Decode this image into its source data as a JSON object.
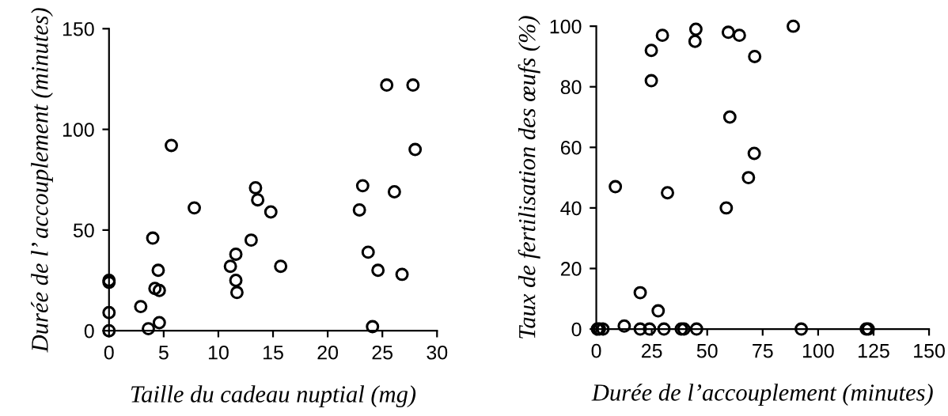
{
  "chart_data": [
    {
      "type": "scatter",
      "xlabel": "Taille du cadeau nuptial (mg)",
      "ylabel": "Durée de l’ accouplement (minutes)",
      "xlim": [
        0,
        30
      ],
      "ylim": [
        0,
        150
      ],
      "xticks": [
        0,
        5,
        10,
        15,
        20,
        25,
        30
      ],
      "yticks": [
        0,
        50,
        100,
        150
      ],
      "grid": false,
      "legend": false,
      "marker": "circle",
      "series": [
        {
          "color": "#000000",
          "x": [
            0,
            0,
            0,
            0,
            2.9,
            3.6,
            4.0,
            4.2,
            4.5,
            4.6,
            4.6,
            5.7,
            7.8,
            11.1,
            11.6,
            11.6,
            11.7,
            13.0,
            13.4,
            13.6,
            14.8,
            15.7,
            22.9,
            23.2,
            23.7,
            24.1,
            24.6,
            25.4,
            26.1,
            26.8,
            27.8,
            28.0
          ],
          "values": [
            25,
            24,
            9,
            0,
            12,
            1,
            46,
            21,
            30,
            20,
            4,
            92,
            61,
            32,
            38,
            25,
            19,
            45,
            71,
            65,
            59,
            32,
            60,
            72,
            39,
            2,
            30,
            122,
            69,
            28,
            122,
            90
          ]
        }
      ]
    },
    {
      "type": "scatter",
      "xlabel": "Durée de l’accouplement (minutes)",
      "ylabel": "Taux de fertilisation des œufs (%)",
      "xlim": [
        0,
        150
      ],
      "ylim": [
        0,
        100
      ],
      "xticks": [
        0,
        25,
        50,
        75,
        100,
        125,
        150
      ],
      "yticks": [
        0,
        20,
        40,
        60,
        80,
        100
      ],
      "grid": false,
      "legend": false,
      "marker": "circle",
      "series": [
        {
          "color": "#000000",
          "x": [
            0.5,
            1.4,
            3,
            8.6,
            12.6,
            19.8,
            19.8,
            24,
            24.8,
            24.8,
            27.9,
            29.8,
            30.5,
            32.1,
            38.3,
            39.5,
            44.5,
            44.9,
            45.2,
            58.6,
            59.5,
            60.2,
            64.5,
            68.6,
            71.2,
            71.4,
            88.8,
            92.4,
            121.7,
            122.6
          ],
          "values": [
            0,
            0,
            0,
            47,
            1,
            12,
            0,
            0,
            92,
            82,
            6,
            97,
            0,
            45,
            0,
            0,
            95,
            99,
            0,
            40,
            98,
            70,
            97,
            50,
            58,
            90,
            100,
            0,
            0,
            0
          ]
        }
      ]
    }
  ]
}
